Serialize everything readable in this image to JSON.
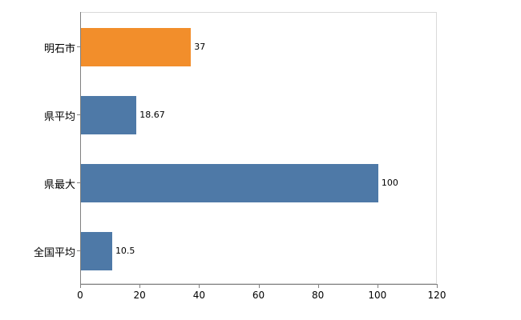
{
  "chart_data": {
    "type": "bar",
    "orientation": "horizontal",
    "title": "",
    "xlabel": "",
    "ylabel": "",
    "categories": [
      "明石市",
      "県平均",
      "県最大",
      "全国平均"
    ],
    "values": [
      37,
      18.67,
      100,
      10.5
    ],
    "value_labels": [
      "37",
      "18.67",
      "100",
      "10.5"
    ],
    "bar_colors": [
      "#f28e2b",
      "#4e79a7",
      "#4e79a7",
      "#4e79a7"
    ],
    "xlim": [
      0,
      120
    ],
    "x_ticks": [
      0,
      20,
      40,
      60,
      80,
      100,
      120
    ],
    "grid": false,
    "legend": false
  },
  "colors": {
    "axis": "#808080",
    "plot_border": "#d9d9d9",
    "text": "#000000",
    "background": "#ffffff"
  }
}
